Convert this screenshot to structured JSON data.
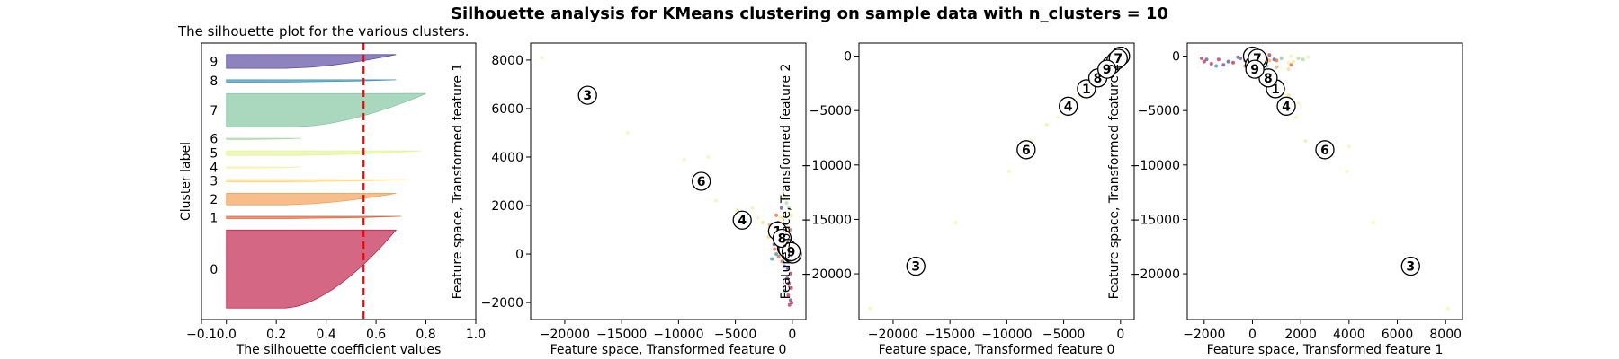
{
  "figure": {
    "suptitle": "Silhouette analysis for KMeans clustering on sample data with n_clusters = 10"
  },
  "colors": {
    "clusters": [
      "#c2264f",
      "#e9633a",
      "#f4a15a",
      "#fdd885",
      "#f6f3a8",
      "#e6f398",
      "#a9dca3",
      "#85c8a4",
      "#3f96b7",
      "#5e4fa2"
    ],
    "threshold": "#ff0000"
  },
  "chart_data": [
    {
      "type": "silhouette",
      "title": "The silhouette plot for the various clusters.",
      "xlabel": "The silhouette coefficient values",
      "ylabel": "Cluster label",
      "xlim": [
        -0.1,
        1.0
      ],
      "xticks": [
        -0.1,
        0.0,
        0.2,
        0.4,
        0.6,
        0.8,
        1.0
      ],
      "xtick_labels": [
        "−0.1",
        "0.0",
        "0.2",
        "0.4",
        "0.6",
        "0.8",
        "1.0"
      ],
      "average_silhouette": 0.55,
      "clusters": [
        {
          "label": "0",
          "size": 68,
          "max": 0.68
        },
        {
          "label": "1",
          "size": 2,
          "max": 0.7
        },
        {
          "label": "2",
          "size": 10,
          "max": 0.68
        },
        {
          "label": "3",
          "size": 2,
          "max": 0.72
        },
        {
          "label": "4",
          "size": 1,
          "max": 0.3
        },
        {
          "label": "5",
          "size": 4,
          "max": 0.78
        },
        {
          "label": "6",
          "size": 1,
          "max": 0.3
        },
        {
          "label": "7",
          "size": 29,
          "max": 0.8
        },
        {
          "label": "8",
          "size": 2,
          "max": 0.68
        },
        {
          "label": "9",
          "size": 12,
          "max": 0.68
        }
      ]
    },
    {
      "type": "scatter",
      "xlabel": "Feature space, Transformed feature 0",
      "ylabel": "Feature space, Transformed feature 1",
      "xlim": [
        -23000,
        1200
      ],
      "ylim": [
        -2700,
        8700
      ],
      "xticks": [
        -20000,
        -15000,
        -10000,
        -5000,
        0
      ],
      "yticks": [
        -2000,
        0,
        2000,
        4000,
        6000,
        8000
      ],
      "centers": [
        {
          "label": "0",
          "x": 0,
          "y": 0
        },
        {
          "label": "1",
          "x": -1300,
          "y": 950
        },
        {
          "label": "2",
          "x": -200,
          "y": 80
        },
        {
          "label": "3",
          "x": -18000,
          "y": 6550
        },
        {
          "label": "4",
          "x": -4400,
          "y": 1400
        },
        {
          "label": "5",
          "x": -500,
          "y": 250
        },
        {
          "label": "6",
          "x": -8000,
          "y": 3000
        },
        {
          "label": "7",
          "x": -400,
          "y": 200
        },
        {
          "label": "8",
          "x": -900,
          "y": 650
        },
        {
          "label": "9",
          "x": -100,
          "y": 100
        }
      ],
      "points": [
        [
          -22000,
          8100,
          4
        ],
        [
          -14500,
          5000,
          4
        ],
        [
          -9500,
          3900,
          4
        ],
        [
          -7400,
          4000,
          4
        ],
        [
          -6700,
          2200,
          4
        ],
        [
          -4800,
          1800,
          3
        ],
        [
          -4200,
          1600,
          4
        ],
        [
          -3500,
          1900,
          4
        ],
        [
          -3000,
          1500,
          4
        ],
        [
          -2600,
          1300,
          3
        ],
        [
          -2000,
          1200,
          2
        ],
        [
          -1500,
          1100,
          1
        ],
        [
          -1200,
          900,
          1
        ],
        [
          -1000,
          800,
          2
        ],
        [
          -900,
          1500,
          3
        ],
        [
          -800,
          600,
          7
        ],
        [
          -700,
          400,
          8
        ],
        [
          -600,
          1700,
          5
        ],
        [
          -500,
          900,
          9
        ],
        [
          -400,
          300,
          2
        ],
        [
          -300,
          700,
          0
        ],
        [
          -250,
          500,
          0
        ],
        [
          -200,
          -300,
          0
        ],
        [
          -150,
          -800,
          0
        ],
        [
          -100,
          -1400,
          0
        ],
        [
          -50,
          -2000,
          0
        ],
        [
          -300,
          -1200,
          0
        ],
        [
          -400,
          -600,
          9
        ],
        [
          -500,
          -200,
          8
        ],
        [
          -600,
          200,
          7
        ],
        [
          -700,
          -500,
          9
        ],
        [
          -800,
          100,
          8
        ],
        [
          -900,
          -300,
          1
        ],
        [
          -1000,
          300,
          2
        ],
        [
          -1100,
          500,
          3
        ],
        [
          -1200,
          -100,
          1
        ],
        [
          -1300,
          700,
          2
        ],
        [
          -1400,
          0,
          8
        ],
        [
          -1600,
          400,
          9
        ],
        [
          -1800,
          -200,
          8
        ],
        [
          -200,
          1000,
          1
        ],
        [
          -100,
          1600,
          5
        ],
        [
          -300,
          1900,
          6
        ],
        [
          -500,
          2100,
          6
        ],
        [
          -700,
          2300,
          5
        ],
        [
          -900,
          1200,
          7
        ],
        [
          -1100,
          1500,
          4
        ],
        [
          -1400,
          1600,
          1
        ],
        [
          -1700,
          1000,
          2
        ],
        [
          -2100,
          700,
          3
        ],
        [
          -350,
          -1700,
          0
        ],
        [
          -150,
          -1900,
          9
        ],
        [
          -450,
          -1000,
          9
        ],
        [
          -650,
          -1500,
          8
        ],
        [
          -250,
          -2100,
          0
        ],
        [
          -550,
          600,
          7
        ],
        [
          -750,
          900,
          8
        ],
        [
          -950,
          1900,
          9
        ],
        [
          -1250,
          1300,
          0
        ],
        [
          -1550,
          200,
          1
        ]
      ]
    },
    {
      "type": "scatter",
      "xlabel": "Feature space, Transformed feature 0",
      "ylabel": "Feature space, Transformed feature 2",
      "xlim": [
        -23000,
        1200
      ],
      "ylim": [
        -24200,
        1200
      ],
      "xticks": [
        -20000,
        -15000,
        -10000,
        -5000,
        0
      ],
      "yticks": [
        -20000,
        -15000,
        -10000,
        -5000,
        0
      ],
      "centers": [
        {
          "label": "0",
          "x": 0,
          "y": 0
        },
        {
          "label": "1",
          "x": -3000,
          "y": -3000
        },
        {
          "label": "2",
          "x": -800,
          "y": -800
        },
        {
          "label": "3",
          "x": -18000,
          "y": -19300
        },
        {
          "label": "4",
          "x": -4600,
          "y": -4600
        },
        {
          "label": "5",
          "x": -400,
          "y": -400
        },
        {
          "label": "6",
          "x": -8300,
          "y": -8600
        },
        {
          "label": "7",
          "x": -200,
          "y": -200
        },
        {
          "label": "8",
          "x": -2000,
          "y": -2000
        },
        {
          "label": "9",
          "x": -1200,
          "y": -1200
        }
      ],
      "points": [
        [
          -22000,
          -23200,
          4
        ],
        [
          -14500,
          -15300,
          4
        ],
        [
          -9800,
          -10600,
          4
        ],
        [
          -7800,
          -7800,
          5
        ],
        [
          -6500,
          -6300,
          5
        ],
        [
          -5500,
          -5600,
          4
        ],
        [
          -5000,
          -4900,
          3
        ],
        [
          -4200,
          -4300,
          4
        ],
        [
          -3600,
          -3600,
          3
        ],
        [
          -3200,
          -3000,
          2
        ],
        [
          -2800,
          -2700,
          1
        ],
        [
          -2400,
          -2300,
          2
        ],
        [
          -2000,
          -1900,
          1
        ],
        [
          -1600,
          -1600,
          2
        ],
        [
          -1300,
          -1200,
          9
        ],
        [
          -1000,
          -900,
          8
        ],
        [
          -800,
          -700,
          7
        ],
        [
          -600,
          -500,
          6
        ],
        [
          -400,
          -300,
          5
        ],
        [
          -200,
          -100,
          0
        ],
        [
          -100,
          100,
          0
        ],
        [
          -300,
          -200,
          9
        ],
        [
          -500,
          -400,
          8
        ],
        [
          -700,
          -600,
          7
        ],
        [
          -900,
          -800,
          1
        ],
        [
          -1100,
          -1000,
          2
        ],
        [
          -1500,
          -1400,
          3
        ],
        [
          -1900,
          -1700,
          9
        ],
        [
          -2200,
          -2100,
          8
        ],
        [
          -2600,
          -2400,
          1
        ]
      ]
    },
    {
      "type": "scatter",
      "xlabel": "Feature space, Transformed feature 1",
      "ylabel": "Feature space, Transformed feature 2",
      "xlim": [
        -2700,
        8700
      ],
      "ylim": [
        -24200,
        1200
      ],
      "xticks": [
        -2000,
        0,
        2000,
        4000,
        6000,
        8000
      ],
      "yticks": [
        -20000,
        -15000,
        -10000,
        -5000,
        0
      ],
      "centers": [
        {
          "label": "0",
          "x": 0,
          "y": 0
        },
        {
          "label": "1",
          "x": 950,
          "y": -3000
        },
        {
          "label": "2",
          "x": 80,
          "y": -800
        },
        {
          "label": "3",
          "x": 6550,
          "y": -19300
        },
        {
          "label": "4",
          "x": 1400,
          "y": -4600
        },
        {
          "label": "5",
          "x": 250,
          "y": -400
        },
        {
          "label": "6",
          "x": 3000,
          "y": -8600
        },
        {
          "label": "7",
          "x": 200,
          "y": -200
        },
        {
          "label": "8",
          "x": 650,
          "y": -2000
        },
        {
          "label": "9",
          "x": 100,
          "y": -1200
        }
      ],
      "points": [
        [
          8100,
          -23200,
          4
        ],
        [
          5000,
          -15300,
          4
        ],
        [
          3900,
          -10600,
          4
        ],
        [
          4000,
          -8300,
          4
        ],
        [
          2200,
          -7800,
          5
        ],
        [
          1800,
          -5600,
          4
        ],
        [
          1600,
          -4900,
          3
        ],
        [
          1900,
          -4300,
          4
        ],
        [
          1500,
          -3600,
          3
        ],
        [
          1300,
          -3000,
          2
        ],
        [
          1200,
          -2700,
          1
        ],
        [
          1100,
          -2300,
          2
        ],
        [
          900,
          -1900,
          1
        ],
        [
          800,
          -1600,
          2
        ],
        [
          1500,
          -1200,
          3
        ],
        [
          600,
          -900,
          7
        ],
        [
          400,
          -700,
          8
        ],
        [
          1700,
          -500,
          5
        ],
        [
          900,
          -300,
          9
        ],
        [
          300,
          -100,
          2
        ],
        [
          700,
          100,
          0
        ],
        [
          500,
          -200,
          0
        ],
        [
          -300,
          -400,
          0
        ],
        [
          -800,
          -600,
          0
        ],
        [
          -1400,
          -300,
          0
        ],
        [
          -2000,
          -500,
          0
        ],
        [
          -1200,
          -800,
          9
        ],
        [
          -600,
          -100,
          9
        ],
        [
          -200,
          -300,
          8
        ],
        [
          200,
          -500,
          7
        ],
        [
          -500,
          -200,
          9
        ],
        [
          100,
          -700,
          8
        ],
        [
          -300,
          -900,
          1
        ],
        [
          300,
          -1100,
          2
        ],
        [
          500,
          -1300,
          3
        ],
        [
          -100,
          -600,
          1
        ],
        [
          700,
          -400,
          2
        ],
        [
          0,
          -800,
          8
        ],
        [
          400,
          -1000,
          9
        ],
        [
          -200,
          -1200,
          8
        ],
        [
          1000,
          -400,
          1
        ],
        [
          1600,
          0,
          5
        ],
        [
          1900,
          -200,
          6
        ],
        [
          2100,
          -300,
          6
        ],
        [
          2300,
          -100,
          5
        ],
        [
          1200,
          -200,
          7
        ],
        [
          1500,
          -600,
          4
        ],
        [
          1600,
          -800,
          1
        ],
        [
          1000,
          -1000,
          2
        ],
        [
          700,
          -1400,
          3
        ],
        [
          -1700,
          -700,
          0
        ],
        [
          -1900,
          -300,
          9
        ],
        [
          -1000,
          -500,
          9
        ],
        [
          -1500,
          -900,
          8
        ],
        [
          -2100,
          -200,
          0
        ]
      ]
    }
  ]
}
